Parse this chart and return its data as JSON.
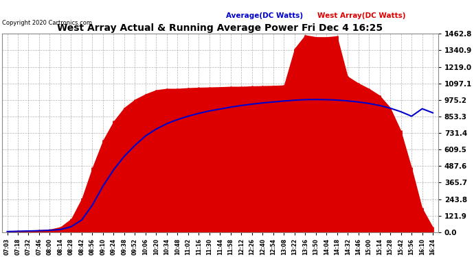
{
  "title": "West Array Actual & Running Average Power Fri Dec 4 16:25",
  "copyright": "Copyright 2020 Cartronics.com",
  "legend_avg": "Average(DC Watts)",
  "legend_west": "West Array(DC Watts)",
  "bg_color": "#ffffff",
  "plot_bg_color": "#ffffff",
  "grid_color": "#aaaaaa",
  "title_color": "#000000",
  "copyright_color": "#000000",
  "avg_color": "#0000cc",
  "west_color": "#dd0000",
  "yticks": [
    0.0,
    121.9,
    243.8,
    365.7,
    487.6,
    609.5,
    731.4,
    853.3,
    975.2,
    1097.1,
    1219.0,
    1340.9,
    1462.8
  ],
  "ymax": 1462.8,
  "xtick_labels": [
    "07:03",
    "07:18",
    "07:32",
    "07:46",
    "08:00",
    "08:14",
    "08:28",
    "08:42",
    "08:56",
    "09:10",
    "09:24",
    "09:38",
    "09:52",
    "10:06",
    "10:20",
    "10:34",
    "10:48",
    "11:02",
    "11:16",
    "11:30",
    "11:44",
    "11:58",
    "12:12",
    "12:26",
    "12:40",
    "12:54",
    "13:08",
    "13:22",
    "13:36",
    "13:50",
    "14:04",
    "14:18",
    "14:32",
    "14:46",
    "15:00",
    "15:14",
    "15:28",
    "15:42",
    "15:56",
    "16:10",
    "16:24"
  ],
  "west_data": [
    10,
    12,
    15,
    18,
    22,
    40,
    100,
    250,
    480,
    680,
    820,
    920,
    980,
    1020,
    1050,
    1060,
    1060,
    1065,
    1068,
    1070,
    1072,
    1075,
    1075,
    1078,
    1080,
    1082,
    1085,
    1350,
    1400,
    1410,
    1390,
    1380,
    1150,
    1100,
    1060,
    1010,
    920,
    750,
    480,
    180,
    40
  ],
  "avg_data": [
    5,
    7,
    9,
    11,
    14,
    20,
    40,
    90,
    200,
    340,
    460,
    560,
    640,
    710,
    760,
    800,
    830,
    855,
    876,
    894,
    908,
    922,
    934,
    944,
    953,
    960,
    967,
    973,
    977,
    978,
    977,
    974,
    968,
    960,
    949,
    934,
    914,
    888,
    855,
    910,
    880
  ]
}
